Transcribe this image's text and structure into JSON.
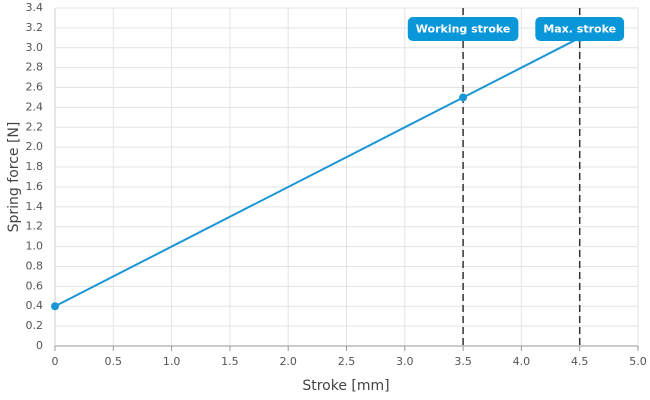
{
  "chart_data": {
    "type": "line",
    "x_label": "Stroke [mm]",
    "y_label": "Spring force [N]",
    "x": [
      0,
      3.5,
      4.5
    ],
    "series": [
      {
        "name": "Spring force",
        "color": "#1a96d4",
        "values": [
          0.4,
          2.5,
          3.1
        ]
      }
    ],
    "xlim": [
      0,
      5
    ],
    "xticks": [
      0,
      0.5,
      {
        "value": 1,
        "label": "1.0"
      },
      1.5,
      {
        "value": 2,
        "label": "2.0"
      },
      2.5,
      {
        "value": 3,
        "label": "3.0"
      },
      3.5,
      {
        "value": 4,
        "label": "4.0"
      },
      4.5,
      {
        "value": 5,
        "label": "5.0"
      }
    ],
    "ylim": [
      0,
      3.4
    ],
    "yticks": [
      0,
      0.2,
      0.4,
      0.6,
      0.8,
      {
        "value": 1,
        "label": "1.0"
      },
      1.2,
      1.4,
      1.6,
      1.8,
      {
        "value": 2,
        "label": "2.0"
      },
      2.2,
      2.4,
      2.6,
      2.8,
      {
        "value": 3,
        "label": "3.0"
      },
      3.2,
      3.4
    ],
    "grid": true,
    "annotations": [
      {
        "x": 3.5,
        "text": "Working stroke"
      },
      {
        "x": 4.5,
        "text": "Max. stroke"
      }
    ],
    "annotation_color": "#0a97d9"
  }
}
